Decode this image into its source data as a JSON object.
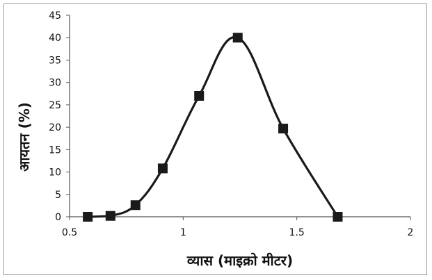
{
  "chart_data": {
    "type": "scatter",
    "title": "",
    "xlabel": "व्यास (माइक्रो मीटर)",
    "ylabel": "आयतन (%)",
    "xlim": [
      0.5,
      2
    ],
    "ylim": [
      0,
      45
    ],
    "xticks": [
      "0.5",
      "1",
      "1.5",
      "2"
    ],
    "yticks": [
      "0",
      "5",
      "10",
      "15",
      "20",
      "25",
      "30",
      "35",
      "40",
      "45"
    ],
    "grid": false,
    "legend": "none",
    "line_color": "#1a1a1a",
    "marker_color": "#1a1a1a",
    "marker": "square",
    "line_style": "smooth",
    "series": [
      {
        "x": [
          0.58,
          0.68,
          0.79,
          0.91,
          1.07,
          1.24,
          1.44,
          1.68
        ],
        "values": [
          0,
          0.2,
          2.6,
          10.8,
          27,
          40,
          19.7,
          0
        ]
      }
    ]
  }
}
